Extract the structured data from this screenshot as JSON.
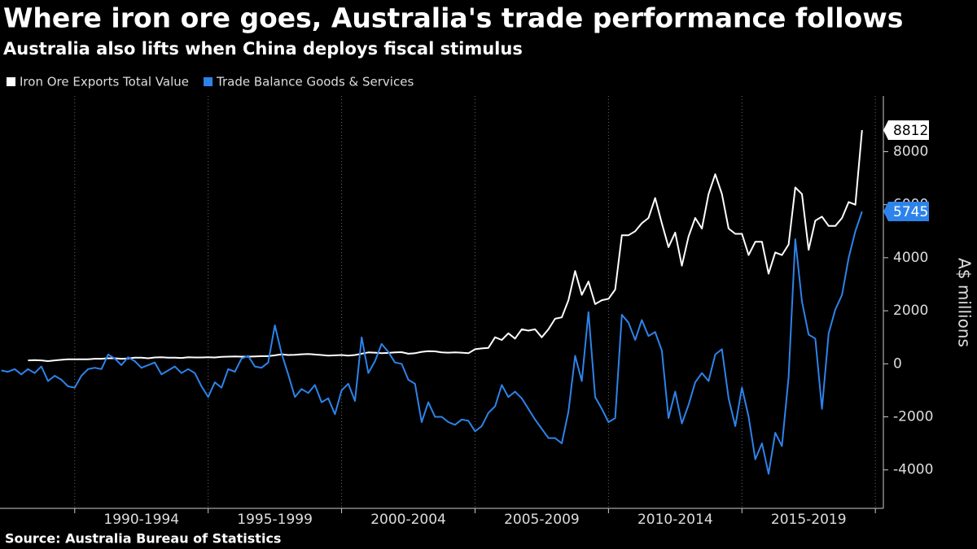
{
  "chart_data": {
    "type": "line",
    "title": "Where iron ore goes, Australia's trade performance follows",
    "subtitle": "Australia also lifts when China deploys fiscal stimulus",
    "source": "Source: Australia Bureau of Statistics",
    "y_label": "A$ millions",
    "x": [
      1987.25,
      1987.5,
      1987.75,
      1988,
      1988.25,
      1988.5,
      1988.75,
      1989,
      1989.25,
      1989.5,
      1989.75,
      1990,
      1990.25,
      1990.5,
      1990.75,
      1991,
      1991.25,
      1991.5,
      1991.75,
      1992,
      1992.25,
      1992.5,
      1992.75,
      1993,
      1993.25,
      1993.5,
      1993.75,
      1994,
      1994.25,
      1994.5,
      1994.75,
      1995,
      1995.25,
      1995.5,
      1995.75,
      1996,
      1996.25,
      1996.5,
      1996.75,
      1997,
      1997.25,
      1997.5,
      1997.75,
      1998,
      1998.25,
      1998.5,
      1998.75,
      1999,
      1999.25,
      1999.5,
      1999.75,
      2000,
      2000.25,
      2000.5,
      2000.75,
      2001,
      2001.25,
      2001.5,
      2001.75,
      2002,
      2002.25,
      2002.5,
      2002.75,
      2003,
      2003.25,
      2003.5,
      2003.75,
      2004,
      2004.25,
      2004.5,
      2004.75,
      2005,
      2005.25,
      2005.5,
      2005.75,
      2006,
      2006.25,
      2006.5,
      2006.75,
      2007,
      2007.25,
      2007.5,
      2007.75,
      2008,
      2008.25,
      2008.5,
      2008.75,
      2009,
      2009.25,
      2009.5,
      2009.75,
      2010,
      2010.25,
      2010.5,
      2010.75,
      2011,
      2011.25,
      2011.5,
      2011.75,
      2012,
      2012.25,
      2012.5,
      2012.75,
      2013,
      2013.25,
      2013.5,
      2013.75,
      2014,
      2014.25,
      2014.5,
      2014.75,
      2015,
      2015.25,
      2015.5,
      2015.75,
      2016,
      2016.25,
      2016.5,
      2016.75,
      2017,
      2017.25,
      2017.5,
      2017.75,
      2018,
      2018.25,
      2018.5,
      2018.75,
      2019,
      2019.25,
      2019.5
    ],
    "series": [
      {
        "name": "Iron Ore Exports Total Value",
        "color": "#ffffff",
        "values": [
          null,
          null,
          null,
          null,
          130,
          140,
          130,
          100,
          130,
          150,
          170,
          170,
          170,
          170,
          190,
          190,
          210,
          210,
          190,
          200,
          230,
          230,
          210,
          240,
          250,
          230,
          230,
          220,
          250,
          240,
          240,
          250,
          240,
          260,
          270,
          280,
          270,
          270,
          280,
          290,
          290,
          320,
          360,
          330,
          340,
          360,
          370,
          350,
          330,
          310,
          320,
          330,
          310,
          330,
          380,
          430,
          420,
          400,
          410,
          430,
          440,
          380,
          400,
          450,
          480,
          470,
          430,
          420,
          430,
          420,
          400,
          550,
          580,
          600,
          1000,
          900,
          1150,
          950,
          1300,
          1250,
          1300,
          1000,
          1300,
          1700,
          1750,
          2400,
          3500,
          2600,
          3100,
          2250,
          2400,
          2450,
          2800,
          4850,
          4850,
          5000,
          5300,
          5500,
          6250,
          5300,
          4400,
          4950,
          3700,
          4800,
          5500,
          5100,
          6400,
          7150,
          6400,
          5100,
          4900,
          4900,
          4100,
          4600,
          4600,
          3400,
          4200,
          4100,
          4500,
          6650,
          6400,
          4300,
          5400,
          5550,
          5200,
          5200,
          5500,
          6100,
          6000,
          8812
        ]
      },
      {
        "name": "Trade Balance Goods & Services",
        "color": "#2d83ea",
        "values": [
          -250,
          -300,
          -200,
          -400,
          -200,
          -350,
          -100,
          -650,
          -450,
          -600,
          -850,
          -900,
          -450,
          -200,
          -150,
          -200,
          350,
          200,
          -50,
          250,
          100,
          -150,
          -50,
          50,
          -400,
          -250,
          -100,
          -350,
          -200,
          -350,
          -850,
          -1250,
          -700,
          -900,
          -200,
          -300,
          200,
          300,
          -100,
          -150,
          50,
          1450,
          400,
          -400,
          -1250,
          -950,
          -1100,
          -800,
          -1450,
          -1300,
          -1900,
          -1000,
          -750,
          -1400,
          1000,
          -350,
          100,
          750,
          450,
          50,
          0,
          -600,
          -750,
          -2200,
          -1450,
          -2000,
          -2000,
          -2200,
          -2300,
          -2100,
          -2150,
          -2550,
          -2350,
          -1850,
          -1600,
          -800,
          -1250,
          -1050,
          -1300,
          -1700,
          -2100,
          -2450,
          -2800,
          -2800,
          -3000,
          -1800,
          300,
          -650,
          1950,
          -1250,
          -1700,
          -2200,
          -2050,
          1850,
          1550,
          900,
          1650,
          1050,
          1200,
          500,
          -2050,
          -1050,
          -2250,
          -1550,
          -700,
          -350,
          -650,
          350,
          550,
          -1300,
          -2350,
          -900,
          -2000,
          -3600,
          -3000,
          -4150,
          -2600,
          -3100,
          -500,
          4700,
          2350,
          1100,
          950,
          -1700,
          1150,
          2050,
          2600,
          4000,
          5000,
          5745
        ]
      }
    ],
    "xlim": [
      1987.2,
      2020.3
    ],
    "xgrid": [
      1990,
      1995,
      2000,
      2005,
      2010,
      2015,
      2020
    ],
    "xticks": [
      {
        "value": 1992.5,
        "label": "1990-1994"
      },
      {
        "value": 1997.5,
        "label": "1995-1999"
      },
      {
        "value": 2002.5,
        "label": "2000-2004"
      },
      {
        "value": 2007.5,
        "label": "2005-2009"
      },
      {
        "value": 2012.5,
        "label": "2010-2014"
      },
      {
        "value": 2017.5,
        "label": "2015-2019"
      }
    ],
    "ylim": [
      -5450,
      10100
    ],
    "yticks": [
      -4000,
      -2000,
      0,
      2000,
      4000,
      6000,
      8000
    ],
    "grid": true
  }
}
